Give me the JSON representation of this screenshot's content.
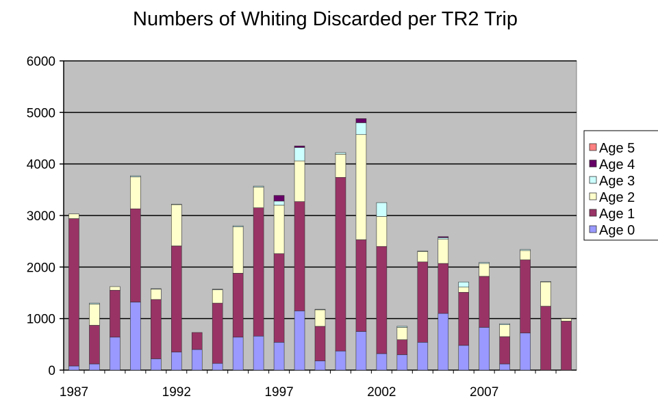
{
  "chart_data": {
    "type": "bar",
    "stacked": true,
    "title": "Numbers of Whiting Discarded per TR2 Trip",
    "xlabel": "",
    "ylabel": "",
    "ylim": [
      0,
      6000
    ],
    "yticks": [
      "0",
      "1000",
      "2000",
      "3000",
      "4000",
      "5000",
      "6000"
    ],
    "grid": true,
    "legend_position": "right",
    "categories": [
      "1987",
      "1988",
      "1989",
      "1990",
      "1991",
      "1992",
      "1993",
      "1994",
      "1995",
      "1996",
      "1997",
      "1998",
      "1999",
      "2000",
      "2001",
      "2002",
      "2003",
      "2004",
      "2005",
      "2006",
      "2007",
      "2008",
      "2009",
      "2010",
      "2011"
    ],
    "xtick_labels": [
      "1987",
      "",
      "",
      "",
      "",
      "1992",
      "",
      "",
      "",
      "",
      "1997",
      "",
      "",
      "",
      "",
      "2002",
      "",
      "",
      "",
      "",
      "2007",
      "",
      "",
      "",
      ""
    ],
    "series": [
      {
        "name": "Age 0",
        "color": "#9999ff",
        "values": [
          80,
          120,
          640,
          1320,
          220,
          350,
          400,
          130,
          640,
          660,
          540,
          1150,
          180,
          370,
          750,
          320,
          300,
          540,
          1100,
          480,
          830,
          120,
          720,
          0,
          0
        ]
      },
      {
        "name": "Age 1",
        "color": "#993366",
        "values": [
          2860,
          750,
          910,
          1810,
          1150,
          2060,
          330,
          1170,
          1240,
          2490,
          1720,
          2120,
          670,
          3370,
          1780,
          2080,
          290,
          1560,
          970,
          1030,
          990,
          530,
          1420,
          1240,
          950
        ]
      },
      {
        "name": "Age 2",
        "color": "#ffffcc",
        "values": [
          90,
          410,
          70,
          620,
          200,
          800,
          0,
          260,
          900,
          400,
          940,
          790,
          320,
          450,
          2040,
          580,
          240,
          200,
          470,
          100,
          250,
          230,
          180,
          470,
          50
        ]
      },
      {
        "name": "Age 3",
        "color": "#ccffff",
        "values": [
          0,
          20,
          0,
          20,
          10,
          10,
          0,
          10,
          20,
          20,
          80,
          260,
          10,
          30,
          230,
          270,
          20,
          10,
          30,
          100,
          20,
          20,
          20,
          10,
          0
        ]
      },
      {
        "name": "Age 4",
        "color": "#660066",
        "values": [
          0,
          0,
          0,
          0,
          0,
          0,
          0,
          0,
          0,
          0,
          110,
          30,
          0,
          0,
          80,
          0,
          0,
          0,
          20,
          0,
          0,
          0,
          0,
          0,
          0
        ]
      },
      {
        "name": "Age 5",
        "color": "#ff8080",
        "values": [
          0,
          0,
          0,
          0,
          0,
          0,
          0,
          0,
          0,
          0,
          0,
          0,
          0,
          0,
          0,
          0,
          0,
          0,
          0,
          0,
          0,
          0,
          0,
          0,
          0
        ]
      }
    ],
    "colors": {
      "plot_background": "#c0c0c0",
      "gridline": "#000000"
    }
  }
}
